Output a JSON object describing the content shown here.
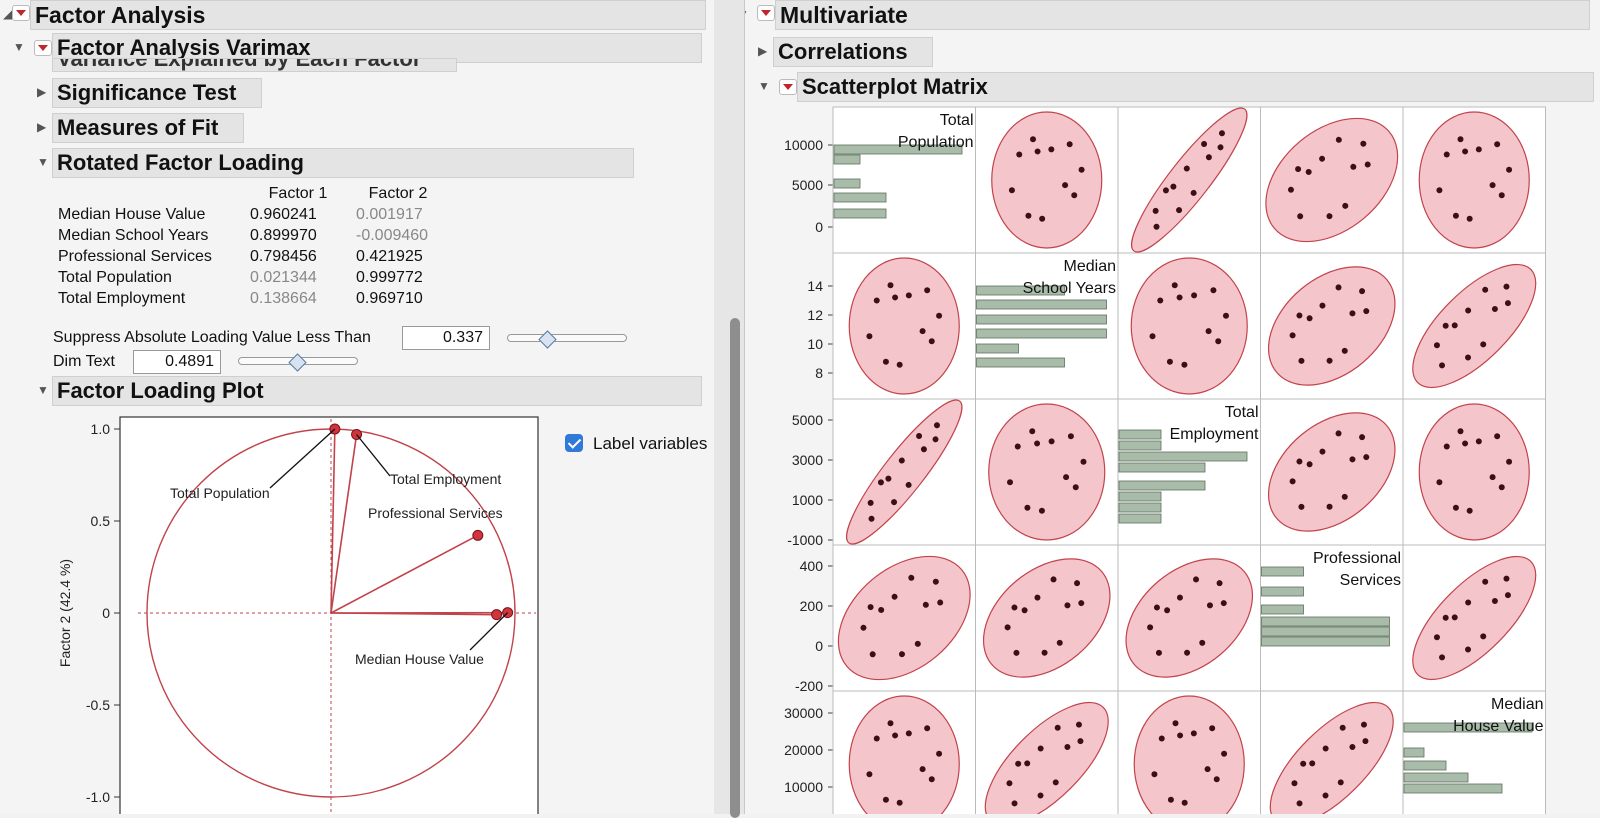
{
  "left": {
    "title": "Factor Analysis",
    "varimax_title": "Factor Analysis Varimax",
    "variance_title": "Variance Explained by Each Factor",
    "significance_title": "Significance Test",
    "measures_title": "Measures of Fit",
    "rotated_title": "Rotated Factor Loading",
    "rotated_table": {
      "columns": [
        "Factor 1",
        "Factor 2"
      ],
      "rows": [
        {
          "name": "Median House Value",
          "f1": "0.960241",
          "f2": "0.001917",
          "f1_dim": false,
          "f2_dim": true
        },
        {
          "name": "Median School Years",
          "f1": "0.899970",
          "f2": "-0.009460",
          "f1_dim": false,
          "f2_dim": true
        },
        {
          "name": "Professional Services",
          "f1": "0.798456",
          "f2": "0.421925",
          "f1_dim": false,
          "f2_dim": false
        },
        {
          "name": "Total Population",
          "f1": "0.021344",
          "f2": "0.999772",
          "f1_dim": true,
          "f2_dim": false
        },
        {
          "name": "Total Employment",
          "f1": "0.138664",
          "f2": "0.969710",
          "f1_dim": true,
          "f2_dim": false
        }
      ]
    },
    "suppress_label": "Suppress Absolute Loading Value Less Than",
    "suppress_value": "0.337",
    "suppress_slider": 0.33,
    "dim_label": "Dim Text",
    "dim_value": "0.4891",
    "dim_slider": 0.49,
    "plot_title": "Factor Loading Plot",
    "label_variables": "Label variables"
  },
  "right": {
    "title": "Multivariate",
    "correlations_title": "Correlations",
    "scatter_title": "Scatterplot Matrix",
    "variables": [
      {
        "line1": "Total",
        "line2": "Population"
      },
      {
        "line1": "Median",
        "line2": "School Years"
      },
      {
        "line1": "Total",
        "line2": "Employment"
      },
      {
        "line1": "Professional",
        "line2": "Services"
      },
      {
        "line1": "Median",
        "line2": "House Value"
      }
    ]
  },
  "colors": {
    "accent_red": "#c0262e",
    "ellipse_fill": "#f4c6cc",
    "histogram_fill": "#a9bca9"
  },
  "chart_data": [
    {
      "type": "scatter",
      "title": "",
      "xlabel": "",
      "ylabel": "Factor 2 (42.4 %)",
      "xlim": [
        -1.1,
        1.1
      ],
      "ylim": [
        -1.0,
        1.0
      ],
      "yticks": [
        "1.0",
        "0.5",
        "0",
        "-0.5",
        "-1.0"
      ],
      "points": [
        {
          "name": "Total Population",
          "x": 0.021,
          "y": 1.0
        },
        {
          "name": "Total Employment",
          "x": 0.139,
          "y": 0.97
        },
        {
          "name": "Professional Services",
          "x": 0.798,
          "y": 0.422
        },
        {
          "name": "Median House Value",
          "x": 0.96,
          "y": 0.002
        },
        {
          "name": "Median School Years",
          "x": 0.9,
          "y": -0.009
        }
      ]
    },
    {
      "type": "scatter-matrix",
      "axis_ticks": [
        [
          "10000",
          "5000",
          "0"
        ],
        [
          "14",
          "12",
          "10",
          "8"
        ],
        [
          "5000",
          "3000",
          "1000",
          "-1000"
        ],
        [
          "400",
          "200",
          "0",
          "-200"
        ],
        [
          "30000",
          "20000",
          "10000"
        ]
      ]
    }
  ]
}
